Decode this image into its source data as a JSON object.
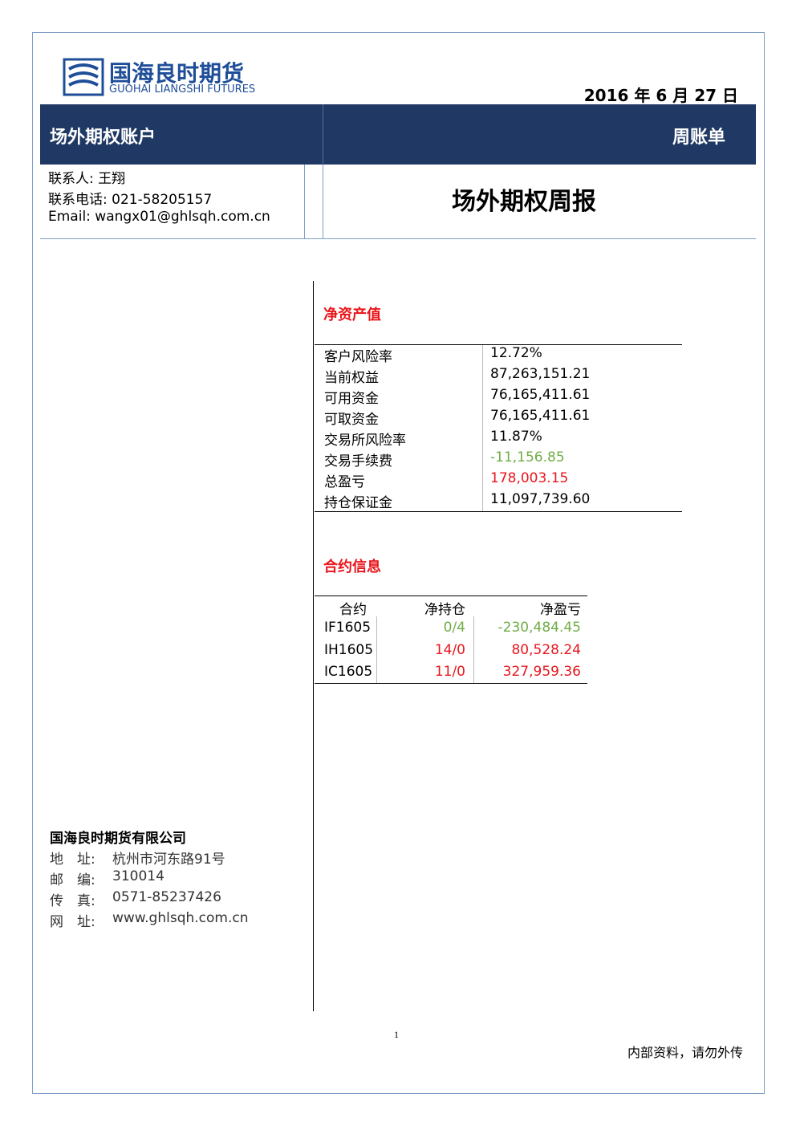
{
  "header": {
    "logo_cn": "国海良时期货",
    "logo_en": "GUOHAI LIANGSHI FUTURES",
    "date": "2016 年 6 月 27 日"
  },
  "banner": {
    "left": "场外期权账户",
    "right": "周账单"
  },
  "contact": {
    "lines": [
      "联系人: 王翔",
      "联系电话: 021-58205157",
      "Email: wangx01@ghlsqh.com.cn"
    ]
  },
  "report_title": "场外期权周报",
  "net_assets": {
    "title": "净资产值",
    "rows": [
      [
        "客户风险率",
        "12.72%"
      ],
      [
        "当前权益",
        "87,263,151.21"
      ],
      [
        "可用资金",
        "76,165,411.61"
      ],
      [
        "可取资金",
        "76,165,411.61"
      ],
      [
        "交易所风险率",
        "11.87%"
      ],
      [
        "交易手续费",
        "-11,156.85"
      ],
      [
        "总盈亏",
        "178,003.15"
      ],
      [
        "持仓保证金",
        "11,097,739.60"
      ]
    ]
  },
  "contracts": {
    "title": "合约信息",
    "header": [
      "合约",
      "净持仓",
      "净盈亏"
    ],
    "rows": [
      [
        "IF1605",
        "0/4",
        "-230,484.45"
      ],
      [
        "IH1605",
        "14/0",
        "80,528.24"
      ],
      [
        "IC1605",
        "11/0",
        "327,959.36"
      ]
    ]
  },
  "company": {
    "name": "国海良时期货有限公司",
    "lines": [
      [
        "地　址:",
        "杭州市河东路91号"
      ],
      [
        "邮　编:",
        "310014"
      ],
      [
        "传　真:",
        "0571-85237426"
      ],
      [
        "网　址:",
        "www.ghlsqh.com.cn"
      ]
    ]
  },
  "footer": {
    "page": "1",
    "note": "内部资料，请勿外传"
  }
}
